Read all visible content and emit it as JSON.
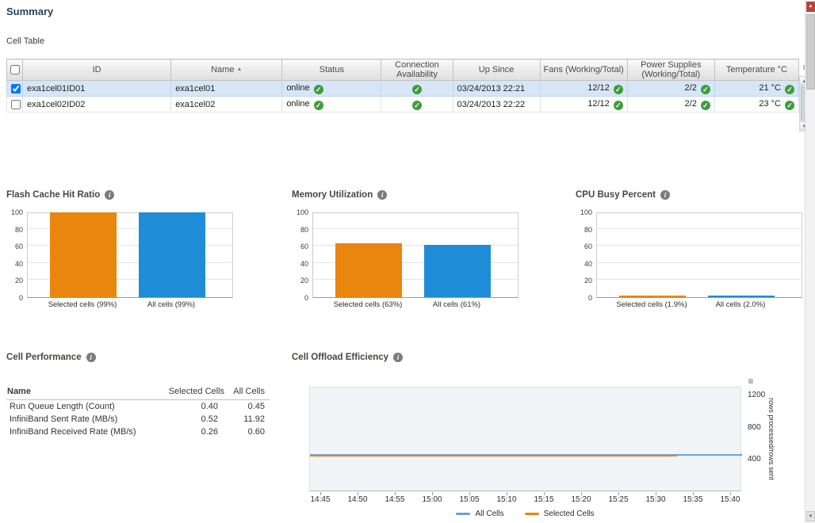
{
  "page": {
    "title": "Summary"
  },
  "icons": {
    "check": "✓",
    "sort_ascending": "▲",
    "info": "i",
    "menu": "≡",
    "scroll_up": "▲",
    "scroll_down": "▼"
  },
  "colors": {
    "orange": "#E8860D",
    "blue": "#1F8CD8",
    "line_blue": "#61A2DC",
    "selected_row": "#D7E6F7",
    "ok_green": "#3D9E3D"
  },
  "cell_table": {
    "label": "Cell Table",
    "columns": [
      "ID",
      "Name",
      "Status",
      "Connection Availability",
      "Up Since",
      "Fans (Working/Total)",
      "Power Supplies (Working/Total)",
      "Temperature °C"
    ],
    "rows": [
      {
        "checked": true,
        "id": "exa1cel01ID01",
        "name": "exa1cel01",
        "status": "online",
        "up_since": "03/24/2013 22:21",
        "fans": "12/12",
        "power_supplies": "2/2",
        "temperature": "21 °C"
      },
      {
        "checked": false,
        "id": "exa1cel02ID02",
        "name": "exa1cel02",
        "status": "online",
        "up_since": "03/24/2013 22:22",
        "fans": "12/12",
        "power_supplies": "2/2",
        "temperature": "23 °C"
      }
    ]
  },
  "cell_performance": {
    "title": "Cell Performance",
    "columns": [
      "Name",
      "Selected Cells",
      "All Cells"
    ],
    "rows": [
      {
        "name": "Run Queue Length (Count)",
        "selected": "0.40",
        "all": "0.45"
      },
      {
        "name": "InfiniBand Sent Rate (MB/s)",
        "selected": "0.52",
        "all": "11.92"
      },
      {
        "name": "InfiniBand Received Rate (MB/s)",
        "selected": "0.26",
        "all": "0.60"
      }
    ]
  },
  "chart_data": [
    {
      "type": "bar",
      "title": "Flash Cache Hit Ratio",
      "categories": [
        "Selected cells (99%)",
        "All cells (99%)"
      ],
      "values": [
        99,
        99
      ],
      "colors": [
        "#E8860D",
        "#1F8CD8"
      ],
      "ylim": [
        0,
        100
      ],
      "yticks": [
        0,
        20,
        40,
        60,
        80,
        100
      ]
    },
    {
      "type": "bar",
      "title": "Memory Utilization",
      "categories": [
        "Selected cells (63%)",
        "All cells (61%)"
      ],
      "values": [
        63,
        61
      ],
      "colors": [
        "#E8860D",
        "#1F8CD8"
      ],
      "ylim": [
        0,
        100
      ],
      "yticks": [
        0,
        20,
        40,
        60,
        80,
        100
      ]
    },
    {
      "type": "bar",
      "title": "CPU Busy Percent",
      "categories": [
        "Selected cells (1.9%)",
        "All cells (2.0%)"
      ],
      "values": [
        1.9,
        2.0
      ],
      "colors": [
        "#E8860D",
        "#1F8CD8"
      ],
      "ylim": [
        0,
        100
      ],
      "yticks": [
        0,
        20,
        40,
        60,
        80,
        100
      ]
    },
    {
      "type": "line",
      "title": "Cell Offload Efficiency",
      "x": [
        "14:45",
        "14:50",
        "14:55",
        "15:00",
        "15:05",
        "15:10",
        "15:15",
        "15:20",
        "15:25",
        "15:30",
        "15:35",
        "15:40"
      ],
      "series": [
        {
          "name": "All Cells",
          "color": "#61A2DC",
          "values": [
            462,
            462,
            462,
            462,
            462,
            462,
            462,
            462,
            462,
            462,
            462,
            462
          ]
        },
        {
          "name": "Selected Cells",
          "color": "#E8860D",
          "values": [
            452,
            452,
            452,
            452,
            452,
            452,
            452,
            452,
            452,
            452,
            null,
            null
          ]
        }
      ],
      "ylabel": "rows processed/rows sent",
      "ylim": [
        0,
        1300
      ],
      "yticks": [
        400,
        800,
        1200
      ],
      "legend_position": "bottom",
      "grid": false
    }
  ]
}
